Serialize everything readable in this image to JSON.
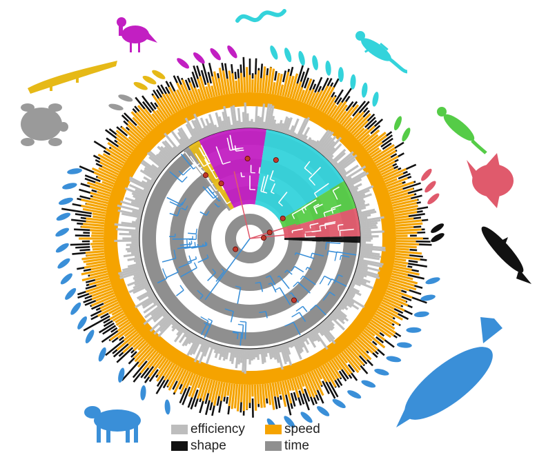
{
  "legend": [
    {
      "label": "efficiency",
      "color": "#bdbdbd"
    },
    {
      "label": "speed",
      "color": "#f5a300"
    },
    {
      "label": "shape",
      "color": "#111111"
    },
    {
      "label": "time",
      "color": "#8f8f8f"
    }
  ],
  "clades": [
    {
      "name": "mammals",
      "color": "#3a8fd8"
    },
    {
      "name": "squamates",
      "color": "#34d3db"
    },
    {
      "name": "birds",
      "color": "#c21fc2"
    },
    {
      "name": "crocodilians",
      "color": "#e6b917"
    },
    {
      "name": "turtles",
      "color": "#9a9a9a"
    },
    {
      "name": "amphibians",
      "color": "#55cc47"
    },
    {
      "name": "ray-finned-fishes",
      "color": "#e05a6c"
    },
    {
      "name": "cartilaginous-fishes",
      "color": "#111111"
    }
  ],
  "silhouettes": [
    {
      "name": "bird-silhouette",
      "color": "#c21fc2"
    },
    {
      "name": "snake-silhouette",
      "color": "#34d3db"
    },
    {
      "name": "lizard-silhouette",
      "color": "#34d3db"
    },
    {
      "name": "salamander-silhouette",
      "color": "#55cc47"
    },
    {
      "name": "sunfish-silhouette",
      "color": "#e05a6c"
    },
    {
      "name": "shark-silhouette",
      "color": "#111111"
    },
    {
      "name": "whale-silhouette",
      "color": "#3a8fd8"
    },
    {
      "name": "hyena-silhouette",
      "color": "#3a8fd8"
    },
    {
      "name": "turtle-silhouette",
      "color": "#9a9a9a"
    },
    {
      "name": "crocodile-silhouette",
      "color": "#e6b917"
    }
  ]
}
